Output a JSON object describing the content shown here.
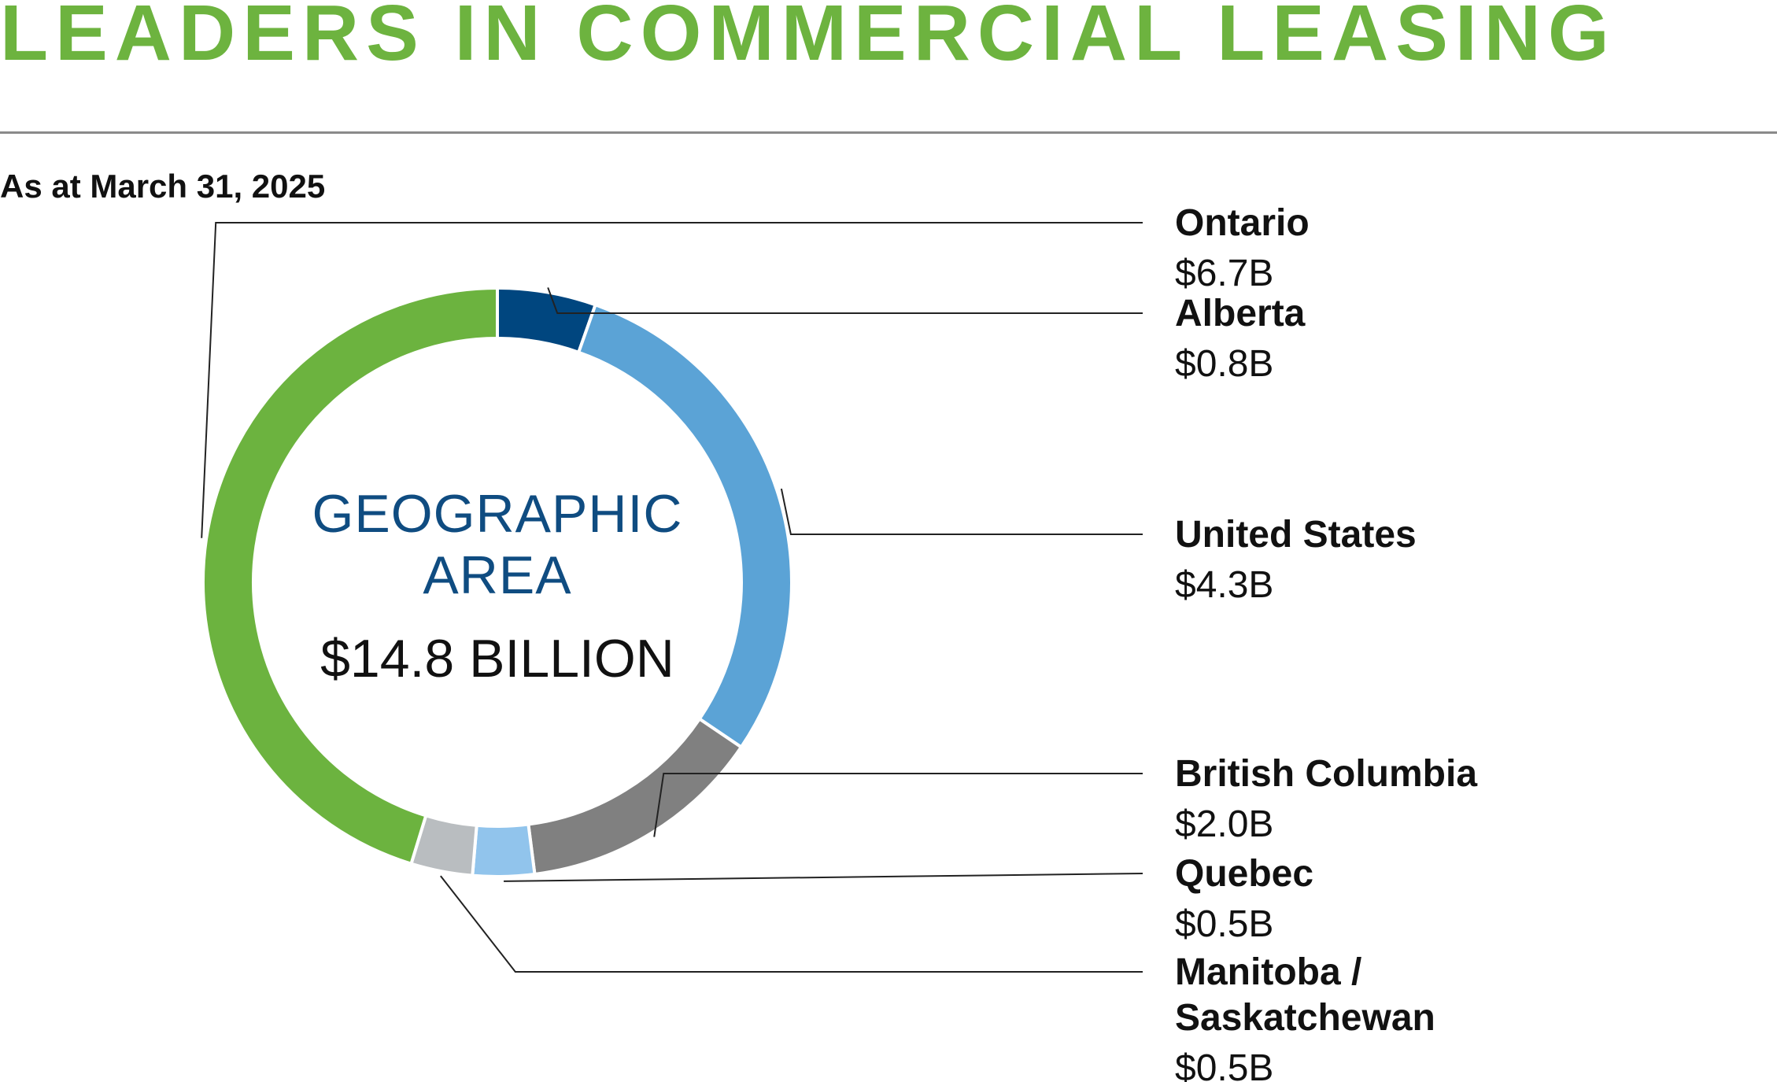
{
  "page": {
    "heading": "LEADERS IN COMMERCIAL LEASING",
    "heading_color": "#6db33f",
    "as_at": "As at March 31, 2025"
  },
  "chart_data": {
    "type": "pie",
    "title": "",
    "center_label": [
      "GEOGRAPHIC",
      "AREA"
    ],
    "center_label_color": "#0f4c81",
    "center_total": "$14.8 BILLION",
    "total": 14.8,
    "unit": "B",
    "legend_position": "right",
    "categories": [
      "Alberta",
      "United States",
      "British Columbia",
      "Quebec",
      "Manitoba / Saskatchewan",
      "Ontario"
    ],
    "values": [
      0.8,
      4.3,
      2.0,
      0.5,
      0.5,
      6.7
    ],
    "colors": [
      "#00467f",
      "#5ba3d6",
      "#808080",
      "#91c4ec",
      "#b9bdc0",
      "#6cb33f"
    ],
    "legend": [
      {
        "name_lines": [
          "Ontario"
        ],
        "value": "$6.7B"
      },
      {
        "name_lines": [
          "Alberta"
        ],
        "value": "$0.8B"
      },
      {
        "name_lines": [
          "United States"
        ],
        "value": "$4.3B"
      },
      {
        "name_lines": [
          "British Columbia"
        ],
        "value": "$2.0B"
      },
      {
        "name_lines": [
          "Quebec"
        ],
        "value": "$0.5B"
      },
      {
        "name_lines": [
          "Manitoba /",
          "Saskatchewan"
        ],
        "value": "$0.5B"
      }
    ]
  }
}
